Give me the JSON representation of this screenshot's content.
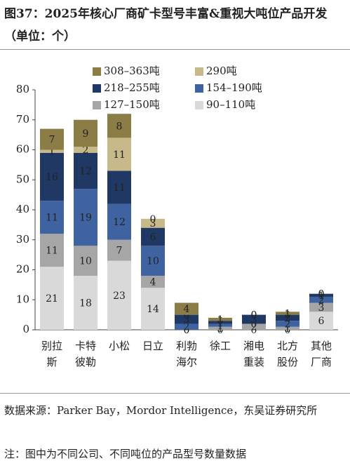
{
  "chart_data": {
    "type": "stacked_bar",
    "title": "图37：2025年核心厂商矿卡型号丰富&重视大吨位产品开发（单位：个）",
    "source": "数据来源：Parker Bay，Mordor Intelligence，东吴证券研究所",
    "note": "注：图中为不同公司、不同吨位的产品型号数量数据",
    "categories": [
      "别拉斯",
      "卡特彼勒",
      "小松",
      "日立",
      "利勃海尔",
      "徐工",
      "湘电重装",
      "北方股份",
      "其他厂商"
    ],
    "series": [
      {
        "name": "90–110吨",
        "color": "#d9d9d9",
        "values": [
          21,
          18,
          23,
          14,
          0,
          0,
          0,
          0,
          6
        ]
      },
      {
        "name": "127–150吨",
        "color": "#a6a6a6",
        "values": [
          11,
          10,
          7,
          4,
          0,
          1,
          2,
          1,
          3
        ]
      },
      {
        "name": "154–190吨",
        "color": "#3f63a0",
        "values": [
          11,
          19,
          12,
          10,
          2,
          1,
          0,
          2,
          2
        ]
      },
      {
        "name": "218–255吨",
        "color": "#1f3864",
        "values": [
          16,
          12,
          11,
          6,
          3,
          1,
          3,
          2,
          1
        ]
      },
      {
        "name": "290吨",
        "color": "#c8b98a",
        "values": [
          1,
          2,
          11,
          3,
          0,
          0,
          0,
          0,
          0
        ]
      },
      {
        "name": "308–363吨",
        "color": "#8b7d45",
        "values": [
          7,
          9,
          8,
          0,
          4,
          1,
          0,
          1,
          0
        ]
      }
    ],
    "ylim": [
      0,
      80
    ],
    "yticks": [
      0,
      10,
      20,
      30,
      40,
      50,
      60,
      70,
      80
    ]
  }
}
